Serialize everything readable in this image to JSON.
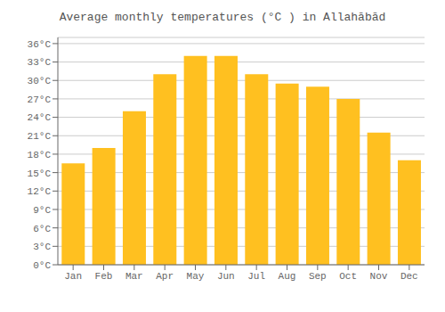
{
  "chart_data": {
    "type": "bar",
    "title": "Average monthly temperatures (°C ) in Allahābād",
    "categories": [
      "Jan",
      "Feb",
      "Mar",
      "Apr",
      "May",
      "Jun",
      "Jul",
      "Aug",
      "Sep",
      "Oct",
      "Nov",
      "Dec"
    ],
    "values": [
      16.5,
      19.0,
      25.0,
      31.0,
      34.0,
      34.0,
      31.0,
      29.5,
      29.0,
      27.0,
      21.5,
      17.0
    ],
    "color": "#FFC020",
    "ylim": [
      0,
      37
    ],
    "yticks": [
      {
        "value": 0,
        "label": "0°C"
      },
      {
        "value": 3,
        "label": "3°C"
      },
      {
        "value": 6,
        "label": "6°C"
      },
      {
        "value": 9,
        "label": "9°C"
      },
      {
        "value": 12,
        "label": "12°C"
      },
      {
        "value": 15,
        "label": "15°C"
      },
      {
        "value": 18,
        "label": "18°C"
      },
      {
        "value": 21,
        "label": "21°C"
      },
      {
        "value": 24,
        "label": "24°C"
      },
      {
        "value": 27,
        "label": "27°C"
      },
      {
        "value": 30,
        "label": "30°C"
      },
      {
        "value": 33,
        "label": "33°C"
      },
      {
        "value": 36,
        "label": "36°C"
      }
    ],
    "grid": true
  }
}
